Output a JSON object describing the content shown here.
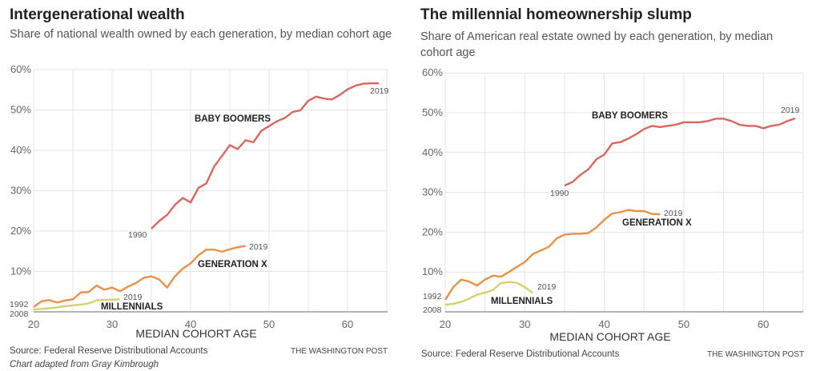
{
  "colors": {
    "baby_boomers": "#d8685e",
    "generation_x": "#e8914a",
    "millennials": "#d6d06c",
    "grid": "#e4e4e4",
    "axis": "#888888"
  },
  "charts": [
    {
      "title": "Intergenerational wealth",
      "subtitle": "Share of national wealth owned by each generation, by median cohort age",
      "source": "Source: Federal Reserve Distributional Accounts",
      "note": "Chart adapted from Gray Kimbrough",
      "credit": "THE WASHINGTON POST"
    },
    {
      "title": "The millennial homeownership slump",
      "subtitle": "Share of American real estate owned by each generation, by median cohort age",
      "source": "Source: Federal Reserve Distributional Accounts",
      "credit": "THE WASHINGTON POST"
    }
  ],
  "chart_data": [
    {
      "type": "line",
      "xlabel": "MEDIAN COHORT AGE",
      "ylabel": "",
      "xlim": [
        20,
        65
      ],
      "ylim": [
        0,
        60
      ],
      "xticks": [
        "20",
        "30",
        "40",
        "50",
        "60"
      ],
      "yticks": [
        "10%",
        "20%",
        "30%",
        "40%",
        "50%",
        "60%"
      ],
      "grid": true,
      "series": [
        {
          "name": "BABY BOOMERS",
          "start_label": "1990",
          "end_label": "2019",
          "x_start": 35,
          "values": [
            20.6,
            22.5,
            24,
            26.5,
            28.2,
            27.1,
            30.7,
            31.8,
            36,
            38.6,
            41.3,
            40.3,
            42.5,
            42,
            44.8,
            46,
            47.2,
            48,
            49.5,
            49.9,
            52.3,
            53.3,
            52.8,
            52.6,
            53.7,
            55.1,
            56,
            56.5,
            56.6,
            56.6
          ]
        },
        {
          "name": "GENERATION X",
          "start_label": "1992",
          "end_label": "2019",
          "x_start": 20,
          "values": [
            1.2,
            2.6,
            2.9,
            2.3,
            2.8,
            3.1,
            4.8,
            4.9,
            6.5,
            5.5,
            6,
            5.1,
            6.2,
            7.1,
            8.4,
            8.8,
            8,
            6,
            8.8,
            10.7,
            12,
            14,
            15.4,
            15.4,
            14.9,
            15.5,
            16,
            16.3
          ]
        },
        {
          "name": "MILLENNIALS",
          "start_label": "2008",
          "end_label": "2019",
          "x_start": 20,
          "values": [
            0.6,
            0.7,
            0.9,
            1.1,
            1.4,
            1.6,
            1.8,
            2.1,
            2.8,
            3.0,
            3.0,
            3.1
          ]
        }
      ]
    },
    {
      "type": "line",
      "xlabel": "MEDIAN COHORT AGE",
      "ylabel": "",
      "xlim": [
        20,
        65
      ],
      "ylim": [
        0,
        60
      ],
      "xticks": [
        "20",
        "30",
        "40",
        "50",
        "60"
      ],
      "yticks": [
        "10%",
        "20%",
        "30%",
        "40%",
        "50%",
        "60%"
      ],
      "grid": true,
      "series": [
        {
          "name": "BABY BOOMERS",
          "start_label": "1990",
          "end_label": "2019",
          "x_start": 35,
          "values": [
            31.7,
            32.6,
            34.4,
            35.8,
            38.3,
            39.5,
            42.3,
            42.6,
            43.5,
            44.6,
            45.9,
            46.7,
            46.4,
            46.7,
            47,
            47.6,
            47.6,
            47.6,
            47.9,
            48.5,
            48.5,
            47.9,
            47,
            46.7,
            46.7,
            46.1,
            46.7,
            47,
            47.9,
            48.6
          ]
        },
        {
          "name": "GENERATION X",
          "start_label": "1992",
          "end_label": "2019",
          "x_start": 20,
          "values": [
            3,
            6.2,
            8.1,
            7.6,
            6.6,
            8.1,
            9.1,
            8.8,
            10,
            11.3,
            12.5,
            14.5,
            15.4,
            16.3,
            18.4,
            19.4,
            19.6,
            19.6,
            19.8,
            21.2,
            23.1,
            24.7,
            25,
            25.6,
            25.3,
            25.3,
            24.6,
            24.5
          ]
        },
        {
          "name": "MILLENNIALS",
          "start_label": "2008",
          "end_label": "2019",
          "x_start": 20,
          "values": [
            1.8,
            2.0,
            2.5,
            3.3,
            4.3,
            4.8,
            5.5,
            7.2,
            7.5,
            7.3,
            6.2,
            4.8
          ]
        }
      ]
    }
  ]
}
